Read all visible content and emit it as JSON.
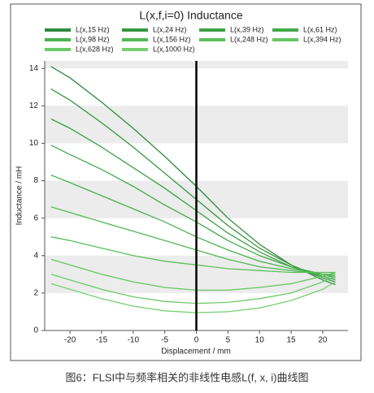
{
  "chart_data": {
    "type": "line",
    "title": "L(x,f,i=0) Inductance",
    "x_label": "Displacement / mm",
    "y_label": "Inductance / mH",
    "caption": "图6：FLSI中与频率相关的非线性电感L(f, x, i)曲线图",
    "x": [
      -23,
      -20,
      -15,
      -10,
      -5,
      0,
      5,
      10,
      15,
      20,
      22
    ],
    "xlim": [
      -24,
      24
    ],
    "xticks": [
      -20,
      -15,
      -10,
      -5,
      0,
      5,
      10,
      15,
      20
    ],
    "ylim": [
      0,
      14.4
    ],
    "yticks": [
      0,
      2,
      4,
      6,
      8,
      10,
      12,
      14
    ],
    "vline_x": 0,
    "grid": true,
    "series": [
      {
        "name": "L(x,15 Hz)",
        "color": "#2f8a3b",
        "values": [
          14.1,
          13.5,
          12.2,
          10.8,
          9.3,
          7.7,
          6.0,
          4.6,
          3.5,
          2.7,
          2.45
        ]
      },
      {
        "name": "L(x,24 Hz)",
        "color": "#36963f",
        "values": [
          12.9,
          12.3,
          11.1,
          9.8,
          8.4,
          7.0,
          5.6,
          4.4,
          3.5,
          2.8,
          2.6
        ]
      },
      {
        "name": "L(x,39 Hz)",
        "color": "#3da044",
        "values": [
          11.3,
          10.8,
          9.8,
          8.7,
          7.6,
          6.4,
          5.2,
          4.2,
          3.4,
          2.9,
          2.7
        ]
      },
      {
        "name": "L(x,61 Hz)",
        "color": "#44a949",
        "values": [
          9.9,
          9.4,
          8.6,
          7.7,
          6.7,
          5.8,
          4.8,
          4.0,
          3.4,
          3.0,
          2.8
        ]
      },
      {
        "name": "L(x,98 Hz)",
        "color": "#4bb14f",
        "values": [
          8.3,
          7.9,
          7.2,
          6.5,
          5.8,
          5.0,
          4.3,
          3.7,
          3.3,
          3.0,
          2.9
        ]
      },
      {
        "name": "L(x,156 Hz)",
        "color": "#53b855",
        "values": [
          6.6,
          6.3,
          5.8,
          5.3,
          4.8,
          4.3,
          3.8,
          3.4,
          3.2,
          3.0,
          3.0
        ]
      },
      {
        "name": "L(x,248 Hz)",
        "color": "#5bbf5b",
        "values": [
          5.0,
          4.8,
          4.4,
          4.0,
          3.7,
          3.5,
          3.3,
          3.2,
          3.1,
          3.1,
          3.1
        ]
      },
      {
        "name": "L(x,394 Hz)",
        "color": "#63c562",
        "values": [
          3.8,
          3.5,
          3.0,
          2.6,
          2.3,
          2.15,
          2.15,
          2.3,
          2.5,
          2.9,
          3.1
        ]
      },
      {
        "name": "L(x,628 Hz)",
        "color": "#6cca69",
        "values": [
          3.0,
          2.7,
          2.2,
          1.8,
          1.55,
          1.45,
          1.5,
          1.7,
          2.0,
          2.6,
          2.9
        ]
      },
      {
        "name": "L(x,1000 Hz)",
        "color": "#76cf71",
        "values": [
          2.5,
          2.2,
          1.7,
          1.3,
          1.05,
          0.95,
          1.0,
          1.2,
          1.6,
          2.2,
          2.6
        ]
      }
    ]
  }
}
